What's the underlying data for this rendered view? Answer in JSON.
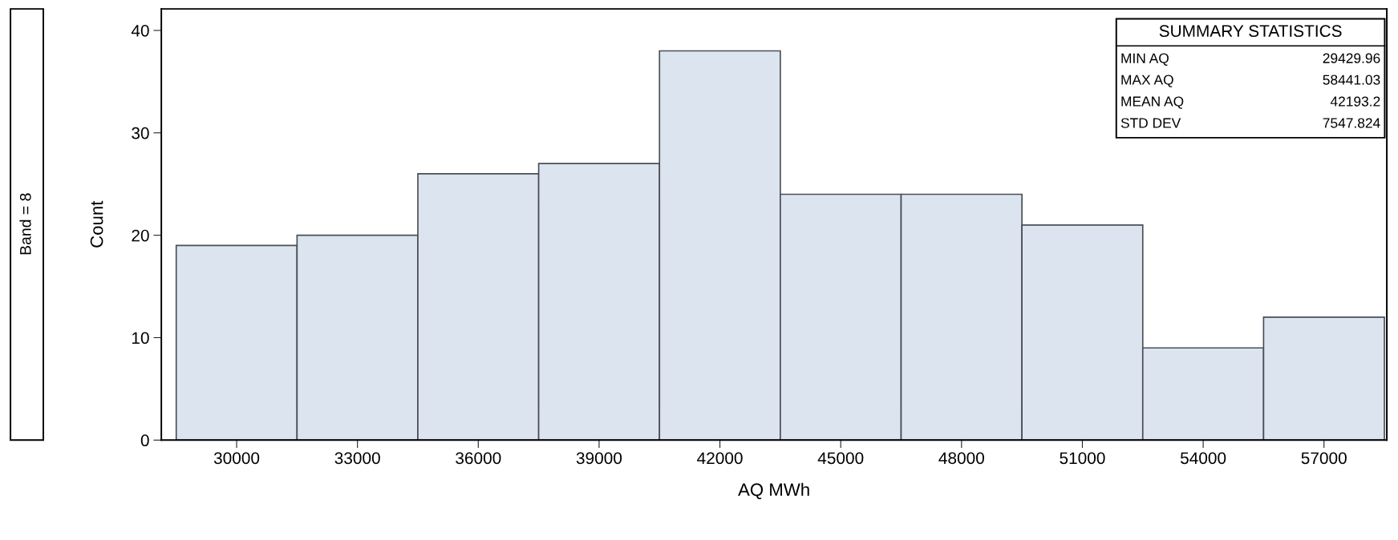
{
  "chart_data": {
    "type": "histogram",
    "bins": [
      28500,
      31500,
      34500,
      37500,
      40500,
      43500,
      46500,
      49500,
      52500,
      55500,
      58500
    ],
    "values": [
      19,
      20,
      26,
      27,
      38,
      24,
      24,
      21,
      9,
      12
    ],
    "color": "#dce4f0",
    "xlabel": "AQ MWh",
    "ylabel": "Count",
    "xlim": [
      28130,
      58560
    ],
    "ylim": [
      0,
      42.1
    ],
    "xticks": [
      30000,
      33000,
      36000,
      39000,
      42000,
      45000,
      48000,
      51000,
      54000,
      57000
    ],
    "yticks": [
      0,
      10,
      20,
      30,
      40
    ],
    "grid": false,
    "legend": false,
    "annotations": [
      "Band = 8",
      "SUMMARY STATISTICS",
      "MIN AQ",
      "29429.96",
      "MAX AQ",
      "58441.03",
      "MEAN AQ",
      "42193.2",
      "STD DEV",
      "7547.824"
    ]
  }
}
